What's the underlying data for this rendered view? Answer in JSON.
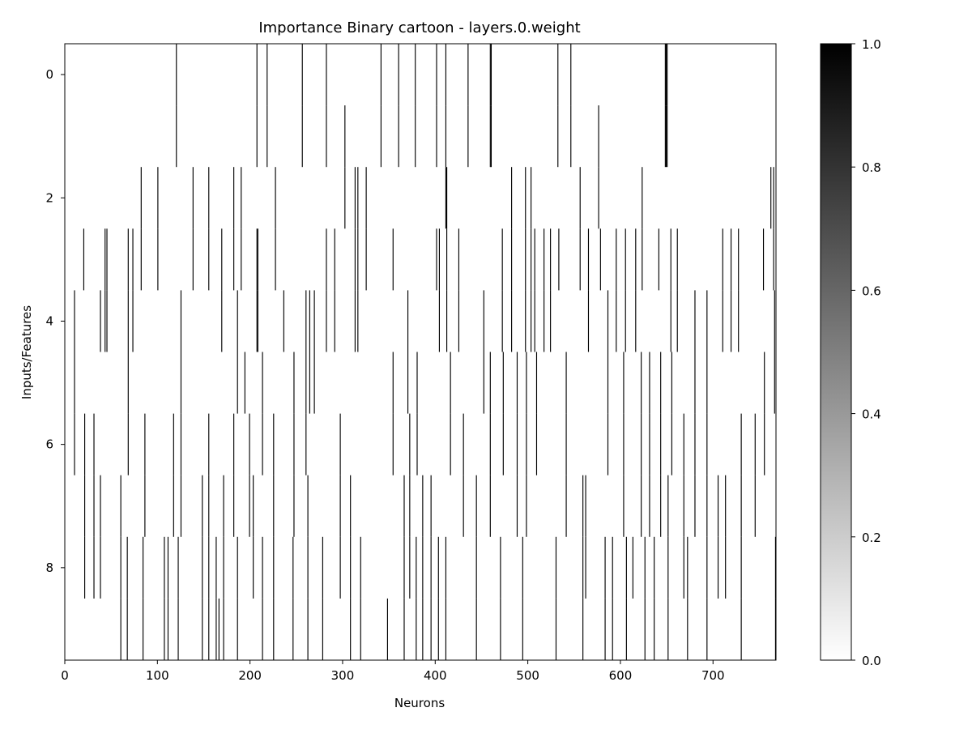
{
  "chart_data": {
    "type": "heatmap",
    "title": "Importance Binary cartoon - layers.0.weight",
    "xlabel": "Neurons",
    "ylabel": "Inputs/Features",
    "xlim": [
      0,
      768
    ],
    "ylim": [
      9.5,
      -0.5
    ],
    "n_rows": 10,
    "n_cols": 768,
    "x_ticks": [
      0,
      100,
      200,
      300,
      400,
      500,
      600,
      700
    ],
    "y_ticks": [
      0,
      2,
      4,
      6,
      8
    ],
    "colorbar": {
      "min": 0.0,
      "max": 1.0,
      "ticks": [
        "0.0",
        "0.2",
        "0.4",
        "0.6",
        "0.8",
        "1.0"
      ],
      "colormap": "Greys"
    },
    "grid": false,
    "values_note_colors": {
      "low": "#ffffff",
      "high": "#000000"
    },
    "active_cells": [
      {
        "row": 0,
        "cols": [
          120,
          207,
          218,
          256,
          282,
          341,
          360,
          378,
          401,
          411,
          435,
          459,
          460,
          532,
          546,
          648,
          649,
          650
        ]
      },
      {
        "row": 1,
        "cols": [
          120,
          207,
          218,
          256,
          282,
          302,
          341,
          360,
          378,
          401,
          411,
          435,
          459,
          460,
          532,
          546,
          576,
          648,
          649,
          650
        ]
      },
      {
        "row": 2,
        "cols": [
          82,
          100,
          138,
          155,
          182,
          190,
          227,
          302,
          313,
          316,
          325,
          411,
          412,
          482,
          497,
          503,
          556,
          576,
          623,
          762,
          765
        ]
      },
      {
        "row": 3,
        "cols": [
          20,
          43,
          45,
          68,
          73,
          82,
          100,
          138,
          155,
          169,
          182,
          190,
          207,
          208,
          227,
          282,
          291,
          313,
          316,
          325,
          354,
          401,
          404,
          412,
          425,
          472,
          482,
          497,
          503,
          507,
          517,
          524,
          533,
          556,
          565,
          578,
          595,
          605,
          616,
          623,
          641,
          654,
          661,
          710,
          719,
          727,
          754,
          765
        ]
      },
      {
        "row": 4,
        "cols": [
          10,
          38,
          43,
          45,
          68,
          73,
          125,
          169,
          186,
          207,
          208,
          236,
          260,
          264,
          269,
          282,
          291,
          313,
          316,
          370,
          404,
          412,
          425,
          452,
          472,
          482,
          497,
          503,
          507,
          517,
          524,
          565,
          586,
          595,
          605,
          616,
          654,
          661,
          680,
          693,
          710,
          719,
          727,
          766
        ]
      },
      {
        "row": 5,
        "cols": [
          10,
          68,
          125,
          186,
          194,
          213,
          247,
          260,
          264,
          269,
          354,
          370,
          380,
          416,
          452,
          459,
          473,
          488,
          498,
          509,
          541,
          586,
          603,
          622,
          631,
          643,
          655,
          680,
          693,
          755,
          766
        ]
      },
      {
        "row": 6,
        "cols": [
          10,
          21,
          31,
          68,
          86,
          117,
          125,
          155,
          182,
          199,
          213,
          225,
          247,
          260,
          297,
          354,
          372,
          380,
          416,
          430,
          459,
          473,
          488,
          498,
          509,
          541,
          586,
          603,
          622,
          631,
          643,
          655,
          668,
          680,
          693,
          730,
          745,
          755
        ]
      },
      {
        "row": 7,
        "cols": [
          21,
          31,
          38,
          60,
          86,
          117,
          125,
          148,
          155,
          171,
          182,
          199,
          203,
          225,
          247,
          262,
          297,
          308,
          366,
          372,
          386,
          395,
          430,
          444,
          459,
          488,
          498,
          541,
          559,
          562,
          603,
          622,
          631,
          643,
          651,
          668,
          680,
          693,
          705,
          713,
          730,
          745
        ]
      },
      {
        "row": 8,
        "cols": [
          21,
          31,
          38,
          60,
          67,
          84,
          107,
          111,
          122,
          148,
          155,
          163,
          171,
          186,
          203,
          213,
          225,
          246,
          262,
          278,
          297,
          308,
          319,
          366,
          372,
          379,
          386,
          395,
          403,
          411,
          444,
          470,
          494,
          530,
          559,
          562,
          583,
          591,
          606,
          613,
          626,
          636,
          651,
          668,
          672,
          693,
          705,
          713,
          730,
          767
        ]
      },
      {
        "row": 9,
        "cols": [
          60,
          67,
          84,
          107,
          111,
          122,
          148,
          155,
          163,
          166,
          171,
          186,
          213,
          225,
          246,
          262,
          278,
          308,
          319,
          348,
          366,
          379,
          386,
          395,
          403,
          411,
          444,
          470,
          494,
          530,
          559,
          583,
          591,
          606,
          626,
          636,
          651,
          672,
          693,
          730,
          767
        ]
      }
    ]
  }
}
